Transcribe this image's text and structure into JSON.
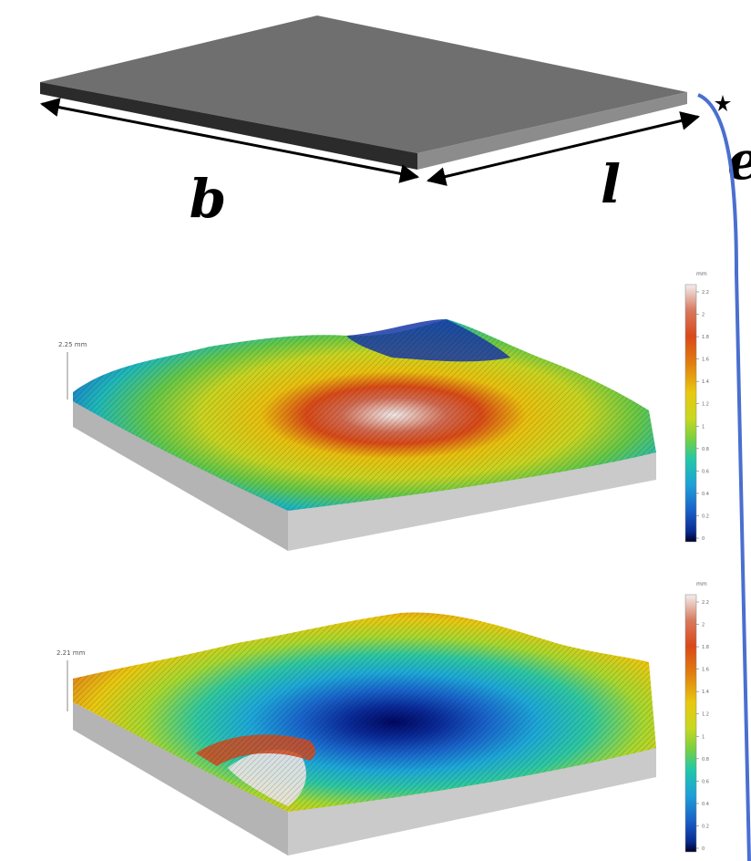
{
  "plate": {
    "label_width": "b",
    "label_length": "l",
    "label_thickness": "e",
    "colors": {
      "top": "#6f6f6f",
      "front": "#2b2b2b",
      "side": "#8c8c8c",
      "curve": "#4a6fd0"
    }
  },
  "surface_top": {
    "height_label": "2.25 mm",
    "colorbar": {
      "unit": "mm",
      "ticks": [
        "2.2",
        "2",
        "1.8",
        "1.6",
        "1.4",
        "1.2",
        "1",
        "0.8",
        "0.6",
        "0.4",
        "0.2",
        "0"
      ]
    }
  },
  "surface_bottom": {
    "height_label": "2.21 mm",
    "colorbar": {
      "unit": "mm",
      "ticks": [
        "2.2",
        "2",
        "1.8",
        "1.6",
        "1.4",
        "1.2",
        "1",
        "0.8",
        "0.6",
        "0.4",
        "0.2",
        "0"
      ]
    }
  },
  "colormap": [
    "#f2eeee",
    "#d77a5e",
    "#d9481a",
    "#e07a10",
    "#e8c810",
    "#c8d820",
    "#78d040",
    "#22c8a8",
    "#1ea0d8",
    "#1a5fc8",
    "#0a2a90",
    "#000028"
  ]
}
